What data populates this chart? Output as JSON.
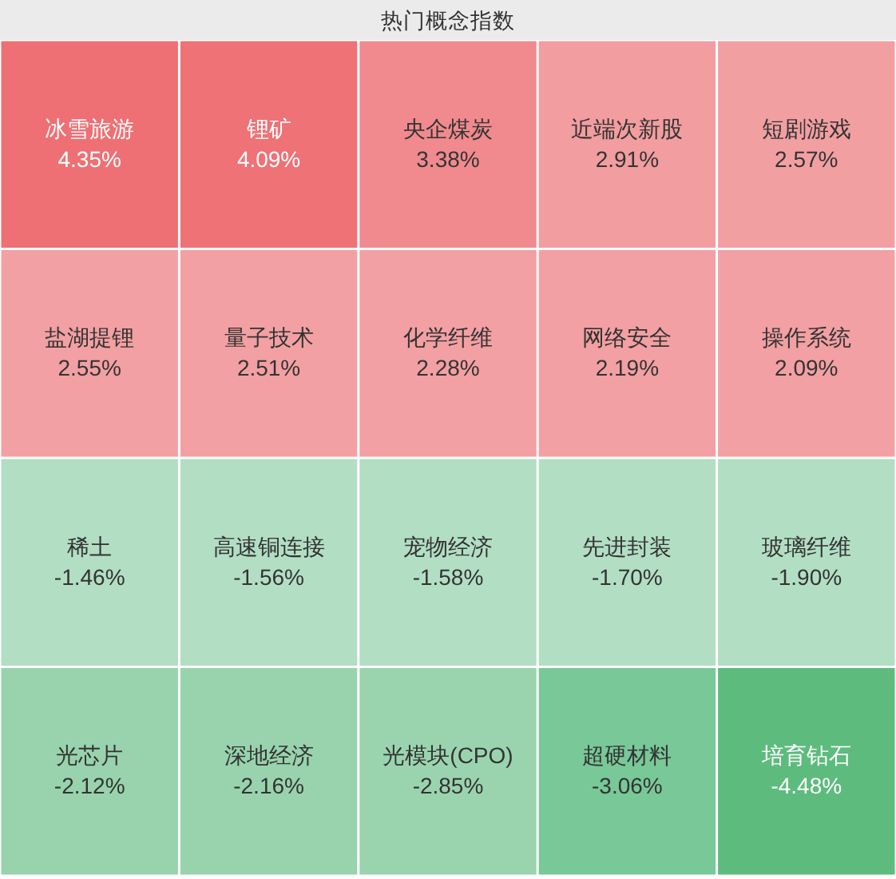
{
  "chart_data": {
    "type": "other",
    "title": "热门概念指数",
    "categories": [
      "冰雪旅游",
      "锂矿",
      "央企煤炭",
      "近端次新股",
      "短剧游戏",
      "盐湖提锂",
      "量子技术",
      "化学纤维",
      "网络安全",
      "操作系统",
      "稀土",
      "高速铜连接",
      "宠物经济",
      "先进封装",
      "玻璃纤维",
      "光芯片",
      "深地经济",
      "光模块(CPO)",
      "超硬材料",
      "培育钻石"
    ],
    "values": [
      4.35,
      4.09,
      3.38,
      2.91,
      2.57,
      2.55,
      2.51,
      2.28,
      2.19,
      2.09,
      -1.46,
      -1.56,
      -1.58,
      -1.7,
      -1.9,
      -2.12,
      -2.16,
      -2.85,
      -3.06,
      -4.48
    ],
    "value_labels": [
      "4.35%",
      "4.09%",
      "3.38%",
      "2.91%",
      "2.57%",
      "2.55%",
      "2.51%",
      "2.28%",
      "2.19%",
      "2.09%",
      "-1.46%",
      "-1.56%",
      "-1.58%",
      "-1.70%",
      "-1.90%",
      "-2.12%",
      "-2.16%",
      "-2.85%",
      "-3.06%",
      "-4.48%"
    ],
    "colors": [
      "#ee7074",
      "#ee7276",
      "#f08a8e",
      "#f29da0",
      "#f29fa2",
      "#f2a0a3",
      "#f2a0a3",
      "#f2a0a3",
      "#f2a0a3",
      "#f2a0a3",
      "#b2dec4",
      "#b2dec4",
      "#b2dec4",
      "#b2dec4",
      "#b2dec4",
      "#98d3ad",
      "#98d3ad",
      "#9ad4af",
      "#78c898",
      "#5dbb7e"
    ]
  }
}
